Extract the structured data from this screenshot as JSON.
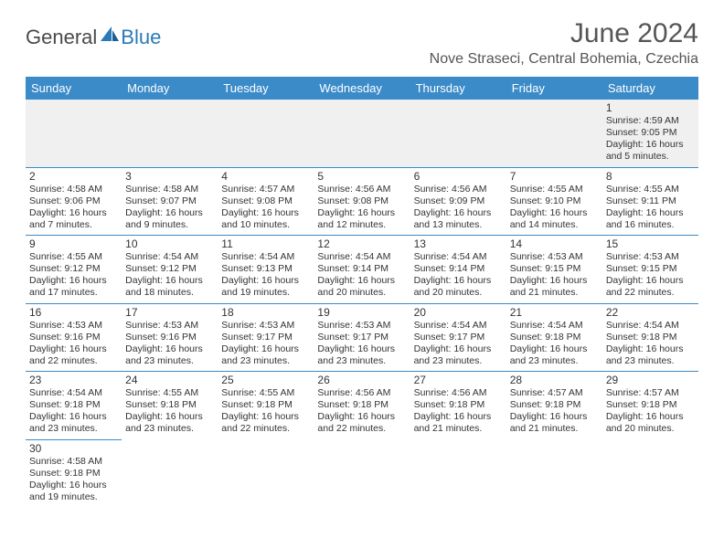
{
  "logo": {
    "general": "General",
    "blue": "Blue"
  },
  "title": "June 2024",
  "location": "Nove Straseci, Central Bohemia, Czechia",
  "colors": {
    "header_bg": "#3b8bc9",
    "header_text": "#ffffff",
    "border": "#3b8bc9",
    "text": "#333333",
    "logo_gray": "#4a4a4a",
    "logo_blue": "#2a7ab8",
    "empty_bg": "#f0f0f0"
  },
  "day_headers": [
    "Sunday",
    "Monday",
    "Tuesday",
    "Wednesday",
    "Thursday",
    "Friday",
    "Saturday"
  ],
  "weeks": [
    [
      null,
      null,
      null,
      null,
      null,
      null,
      {
        "n": "1",
        "sr": "4:59 AM",
        "ss": "9:05 PM",
        "dl": "16 hours and 5 minutes."
      }
    ],
    [
      {
        "n": "2",
        "sr": "4:58 AM",
        "ss": "9:06 PM",
        "dl": "16 hours and 7 minutes."
      },
      {
        "n": "3",
        "sr": "4:58 AM",
        "ss": "9:07 PM",
        "dl": "16 hours and 9 minutes."
      },
      {
        "n": "4",
        "sr": "4:57 AM",
        "ss": "9:08 PM",
        "dl": "16 hours and 10 minutes."
      },
      {
        "n": "5",
        "sr": "4:56 AM",
        "ss": "9:08 PM",
        "dl": "16 hours and 12 minutes."
      },
      {
        "n": "6",
        "sr": "4:56 AM",
        "ss": "9:09 PM",
        "dl": "16 hours and 13 minutes."
      },
      {
        "n": "7",
        "sr": "4:55 AM",
        "ss": "9:10 PM",
        "dl": "16 hours and 14 minutes."
      },
      {
        "n": "8",
        "sr": "4:55 AM",
        "ss": "9:11 PM",
        "dl": "16 hours and 16 minutes."
      }
    ],
    [
      {
        "n": "9",
        "sr": "4:55 AM",
        "ss": "9:12 PM",
        "dl": "16 hours and 17 minutes."
      },
      {
        "n": "10",
        "sr": "4:54 AM",
        "ss": "9:12 PM",
        "dl": "16 hours and 18 minutes."
      },
      {
        "n": "11",
        "sr": "4:54 AM",
        "ss": "9:13 PM",
        "dl": "16 hours and 19 minutes."
      },
      {
        "n": "12",
        "sr": "4:54 AM",
        "ss": "9:14 PM",
        "dl": "16 hours and 20 minutes."
      },
      {
        "n": "13",
        "sr": "4:54 AM",
        "ss": "9:14 PM",
        "dl": "16 hours and 20 minutes."
      },
      {
        "n": "14",
        "sr": "4:53 AM",
        "ss": "9:15 PM",
        "dl": "16 hours and 21 minutes."
      },
      {
        "n": "15",
        "sr": "4:53 AM",
        "ss": "9:15 PM",
        "dl": "16 hours and 22 minutes."
      }
    ],
    [
      {
        "n": "16",
        "sr": "4:53 AM",
        "ss": "9:16 PM",
        "dl": "16 hours and 22 minutes."
      },
      {
        "n": "17",
        "sr": "4:53 AM",
        "ss": "9:16 PM",
        "dl": "16 hours and 23 minutes."
      },
      {
        "n": "18",
        "sr": "4:53 AM",
        "ss": "9:17 PM",
        "dl": "16 hours and 23 minutes."
      },
      {
        "n": "19",
        "sr": "4:53 AM",
        "ss": "9:17 PM",
        "dl": "16 hours and 23 minutes."
      },
      {
        "n": "20",
        "sr": "4:54 AM",
        "ss": "9:17 PM",
        "dl": "16 hours and 23 minutes."
      },
      {
        "n": "21",
        "sr": "4:54 AM",
        "ss": "9:18 PM",
        "dl": "16 hours and 23 minutes."
      },
      {
        "n": "22",
        "sr": "4:54 AM",
        "ss": "9:18 PM",
        "dl": "16 hours and 23 minutes."
      }
    ],
    [
      {
        "n": "23",
        "sr": "4:54 AM",
        "ss": "9:18 PM",
        "dl": "16 hours and 23 minutes."
      },
      {
        "n": "24",
        "sr": "4:55 AM",
        "ss": "9:18 PM",
        "dl": "16 hours and 23 minutes."
      },
      {
        "n": "25",
        "sr": "4:55 AM",
        "ss": "9:18 PM",
        "dl": "16 hours and 22 minutes."
      },
      {
        "n": "26",
        "sr": "4:56 AM",
        "ss": "9:18 PM",
        "dl": "16 hours and 22 minutes."
      },
      {
        "n": "27",
        "sr": "4:56 AM",
        "ss": "9:18 PM",
        "dl": "16 hours and 21 minutes."
      },
      {
        "n": "28",
        "sr": "4:57 AM",
        "ss": "9:18 PM",
        "dl": "16 hours and 21 minutes."
      },
      {
        "n": "29",
        "sr": "4:57 AM",
        "ss": "9:18 PM",
        "dl": "16 hours and 20 minutes."
      }
    ],
    [
      {
        "n": "30",
        "sr": "4:58 AM",
        "ss": "9:18 PM",
        "dl": "16 hours and 19 minutes."
      },
      null,
      null,
      null,
      null,
      null,
      null
    ]
  ],
  "labels": {
    "sunrise": "Sunrise: ",
    "sunset": "Sunset: ",
    "daylight": "Daylight: "
  }
}
